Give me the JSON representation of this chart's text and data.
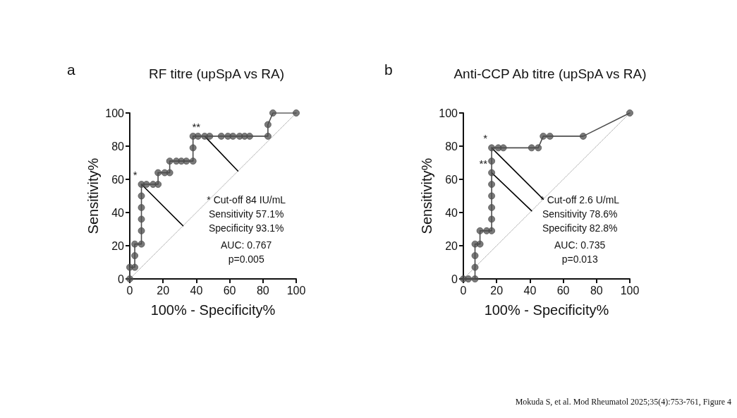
{
  "chart_data": [
    {
      "type": "line",
      "title": "RF titre (upSpA vs RA)",
      "xlabel": "100% - Specificity%",
      "ylabel": "Sensitivity%",
      "xlim": [
        0,
        100
      ],
      "ylim": [
        0,
        100
      ],
      "xticks": [
        0,
        20,
        40,
        60,
        80,
        100
      ],
      "yticks": [
        0,
        20,
        40,
        60,
        80,
        100
      ],
      "grid": false,
      "annotations": [
        "a",
        {
          "text": "*",
          "x": 7,
          "y": 57
        },
        {
          "text": "**",
          "x": 45,
          "y": 86
        },
        "* Cut-off 84 IU/mL",
        "Sensitivity 57.1%",
        "Specificity 93.1%",
        "AUC: 0.767",
        "p=0.005"
      ],
      "series": [
        {
          "color": "#4d4d4d",
          "marker": "circle",
          "line_style": "solid",
          "x": [
            0,
            0,
            3,
            3,
            3,
            7,
            7,
            7,
            7,
            7,
            7,
            10,
            14,
            17,
            17,
            21,
            24,
            24,
            28,
            31,
            34,
            38,
            38,
            38,
            41,
            45,
            48,
            55,
            59,
            62,
            66,
            69,
            72,
            83,
            83,
            86,
            100
          ],
          "values": [
            0,
            7,
            7,
            14,
            21,
            21,
            29,
            36,
            43,
            50,
            57,
            57,
            57,
            57,
            64,
            64,
            64,
            71,
            71,
            71,
            71,
            71,
            79,
            86,
            86,
            86,
            86,
            86,
            86,
            86,
            86,
            86,
            86,
            86,
            93,
            100,
            100
          ]
        },
        {
          "color": "#000000",
          "marker": "none",
          "line_style": "solid",
          "x": [
            7,
            32
          ],
          "values": [
            57,
            32
          ]
        },
        {
          "color": "#000000",
          "marker": "none",
          "line_style": "solid",
          "x": [
            45,
            65
          ],
          "values": [
            86,
            65
          ]
        },
        {
          "color": "#b0b0b0",
          "marker": "none",
          "line_style": "dotted",
          "x": [
            0,
            100
          ],
          "values": [
            0,
            100
          ]
        }
      ]
    },
    {
      "type": "line",
      "title": "Anti-CCP Ab titre (upSpA vs RA)",
      "xlabel": "100% - Specificity%",
      "ylabel": "Sensitivity%",
      "xlim": [
        0,
        100
      ],
      "ylim": [
        0,
        100
      ],
      "xticks": [
        0,
        20,
        40,
        60,
        80,
        100
      ],
      "yticks": [
        0,
        20,
        40,
        60,
        80,
        100
      ],
      "grid": false,
      "annotations": [
        "b",
        {
          "text": "*",
          "x": 17,
          "y": 79
        },
        {
          "text": "**",
          "x": 17,
          "y": 64
        },
        "* Cut-off 2.6 U/mL",
        "Sensitivity 78.6%",
        "Specificity 82.8%",
        "AUC: 0.735",
        "p=0.013",
        "Mokuda S, et al. Mod Rheumatol 2025;35(4):753-761, Figure 4"
      ],
      "series": [
        {
          "color": "#4d4d4d",
          "marker": "circle",
          "line_style": "solid",
          "x": [
            0,
            3,
            7,
            7,
            7,
            7,
            10,
            10,
            14,
            17,
            17,
            17,
            17,
            17,
            17,
            17,
            17,
            21,
            24,
            41,
            45,
            48,
            52,
            72,
            100
          ],
          "values": [
            0,
            0,
            0,
            7,
            14,
            21,
            21,
            29,
            29,
            29,
            36,
            43,
            50,
            57,
            64,
            71,
            79,
            79,
            79,
            79,
            79,
            86,
            86,
            86,
            100
          ]
        },
        {
          "color": "#000000",
          "marker": "none",
          "line_style": "solid",
          "x": [
            17,
            48
          ],
          "values": [
            79,
            48
          ]
        },
        {
          "color": "#000000",
          "marker": "none",
          "line_style": "solid",
          "x": [
            17,
            41
          ],
          "values": [
            64,
            41
          ]
        },
        {
          "color": "#b0b0b0",
          "marker": "none",
          "line_style": "dotted",
          "x": [
            0,
            100
          ],
          "values": [
            0,
            100
          ]
        }
      ]
    }
  ]
}
